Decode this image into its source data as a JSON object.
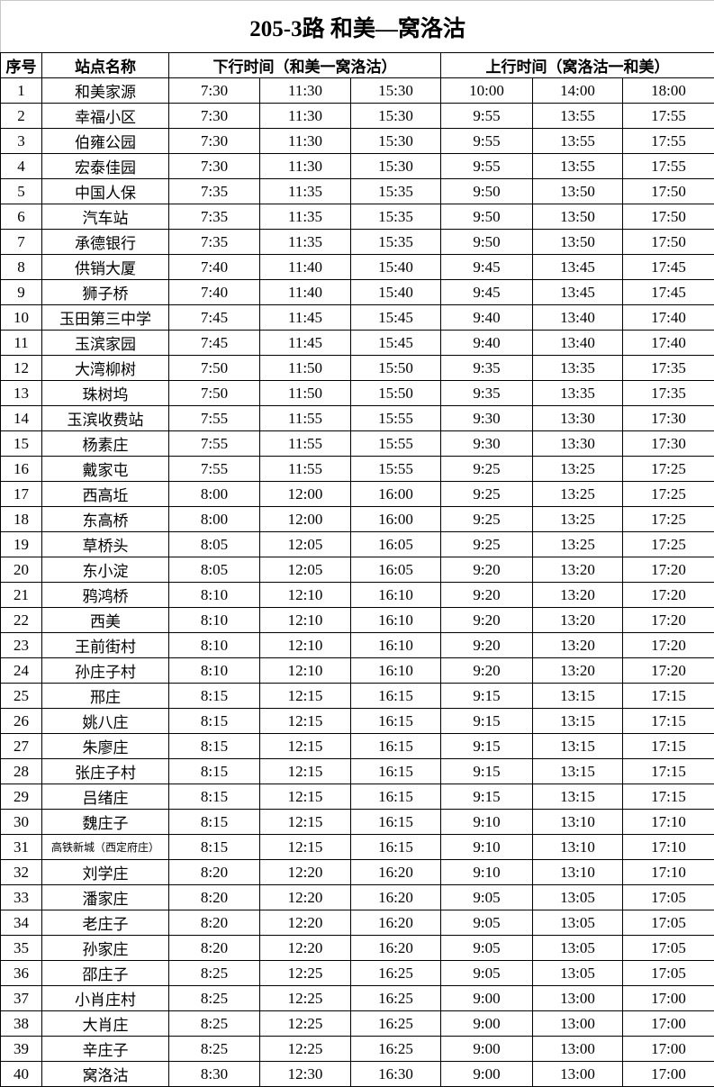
{
  "title": "205-3路  和美—窝洛沽",
  "headers": {
    "seq": "序号",
    "station": "站点名称",
    "down": "下行时间（和美一窝洛沽）",
    "up": "上行时间（窝洛沽一和美）"
  },
  "rows": [
    [
      "1",
      "和美家源",
      "7:30",
      "11:30",
      "15:30",
      "10:00",
      "14:00",
      "18:00"
    ],
    [
      "2",
      "幸福小区",
      "7:30",
      "11:30",
      "15:30",
      "9:55",
      "13:55",
      "17:55"
    ],
    [
      "3",
      "伯雍公园",
      "7:30",
      "11:30",
      "15:30",
      "9:55",
      "13:55",
      "17:55"
    ],
    [
      "4",
      "宏泰佳园",
      "7:30",
      "11:30",
      "15:30",
      "9:55",
      "13:55",
      "17:55"
    ],
    [
      "5",
      "中国人保",
      "7:35",
      "11:35",
      "15:35",
      "9:50",
      "13:50",
      "17:50"
    ],
    [
      "6",
      "汽车站",
      "7:35",
      "11:35",
      "15:35",
      "9:50",
      "13:50",
      "17:50"
    ],
    [
      "7",
      "承德银行",
      "7:35",
      "11:35",
      "15:35",
      "9:50",
      "13:50",
      "17:50"
    ],
    [
      "8",
      "供销大厦",
      "7:40",
      "11:40",
      "15:40",
      "9:45",
      "13:45",
      "17:45"
    ],
    [
      "9",
      "狮子桥",
      "7:40",
      "11:40",
      "15:40",
      "9:45",
      "13:45",
      "17:45"
    ],
    [
      "10",
      "玉田第三中学",
      "7:45",
      "11:45",
      "15:45",
      "9:40",
      "13:40",
      "17:40"
    ],
    [
      "11",
      "玉滨家园",
      "7:45",
      "11:45",
      "15:45",
      "9:40",
      "13:40",
      "17:40"
    ],
    [
      "12",
      "大湾柳树",
      "7:50",
      "11:50",
      "15:50",
      "9:35",
      "13:35",
      "17:35"
    ],
    [
      "13",
      "珠树坞",
      "7:50",
      "11:50",
      "15:50",
      "9:35",
      "13:35",
      "17:35"
    ],
    [
      "14",
      "玉滨收费站",
      "7:55",
      "11:55",
      "15:55",
      "9:30",
      "13:30",
      "17:30"
    ],
    [
      "15",
      "杨素庄",
      "7:55",
      "11:55",
      "15:55",
      "9:30",
      "13:30",
      "17:30"
    ],
    [
      "16",
      "戴家屯",
      "7:55",
      "11:55",
      "15:55",
      "9:25",
      "13:25",
      "17:25"
    ],
    [
      "17",
      "西高坵",
      "8:00",
      "12:00",
      "16:00",
      "9:25",
      "13:25",
      "17:25"
    ],
    [
      "18",
      "东高桥",
      "8:00",
      "12:00",
      "16:00",
      "9:25",
      "13:25",
      "17:25"
    ],
    [
      "19",
      "草桥头",
      "8:05",
      "12:05",
      "16:05",
      "9:25",
      "13:25",
      "17:25"
    ],
    [
      "20",
      "东小淀",
      "8:05",
      "12:05",
      "16:05",
      "9:20",
      "13:20",
      "17:20"
    ],
    [
      "21",
      "鸦鸿桥",
      "8:10",
      "12:10",
      "16:10",
      "9:20",
      "13:20",
      "17:20"
    ],
    [
      "22",
      "西美",
      "8:10",
      "12:10",
      "16:10",
      "9:20",
      "13:20",
      "17:20"
    ],
    [
      "23",
      "王前街村",
      "8:10",
      "12:10",
      "16:10",
      "9:20",
      "13:20",
      "17:20"
    ],
    [
      "24",
      "孙庄子村",
      "8:10",
      "12:10",
      "16:10",
      "9:20",
      "13:20",
      "17:20"
    ],
    [
      "25",
      "邢庄",
      "8:15",
      "12:15",
      "16:15",
      "9:15",
      "13:15",
      "17:15"
    ],
    [
      "26",
      "姚八庄",
      "8:15",
      "12:15",
      "16:15",
      "9:15",
      "13:15",
      "17:15"
    ],
    [
      "27",
      "朱廖庄",
      "8:15",
      "12:15",
      "16:15",
      "9:15",
      "13:15",
      "17:15"
    ],
    [
      "28",
      "张庄子村",
      "8:15",
      "12:15",
      "16:15",
      "9:15",
      "13:15",
      "17:15"
    ],
    [
      "29",
      "吕绪庄",
      "8:15",
      "12:15",
      "16:15",
      "9:15",
      "13:15",
      "17:15"
    ],
    [
      "30",
      "魏庄子",
      "8:15",
      "12:15",
      "16:15",
      "9:10",
      "13:10",
      "17:10"
    ],
    [
      "31",
      "高铁新城（西定府庄）",
      "8:15",
      "12:15",
      "16:15",
      "9:10",
      "13:10",
      "17:10"
    ],
    [
      "32",
      "刘学庄",
      "8:20",
      "12:20",
      "16:20",
      "9:10",
      "13:10",
      "17:10"
    ],
    [
      "33",
      "潘家庄",
      "8:20",
      "12:20",
      "16:20",
      "9:05",
      "13:05",
      "17:05"
    ],
    [
      "34",
      "老庄子",
      "8:20",
      "12:20",
      "16:20",
      "9:05",
      "13:05",
      "17:05"
    ],
    [
      "35",
      "孙家庄",
      "8:20",
      "12:20",
      "16:20",
      "9:05",
      "13:05",
      "17:05"
    ],
    [
      "36",
      "邵庄子",
      "8:25",
      "12:25",
      "16:25",
      "9:05",
      "13:05",
      "17:05"
    ],
    [
      "37",
      "小肖庄村",
      "8:25",
      "12:25",
      "16:25",
      "9:00",
      "13:00",
      "17:00"
    ],
    [
      "38",
      "大肖庄",
      "8:25",
      "12:25",
      "16:25",
      "9:00",
      "13:00",
      "17:00"
    ],
    [
      "39",
      "辛庄子",
      "8:25",
      "12:25",
      "16:25",
      "9:00",
      "13:00",
      "17:00"
    ],
    [
      "40",
      "窝洛沽",
      "8:30",
      "12:30",
      "16:30",
      "9:00",
      "13:00",
      "17:00"
    ]
  ]
}
